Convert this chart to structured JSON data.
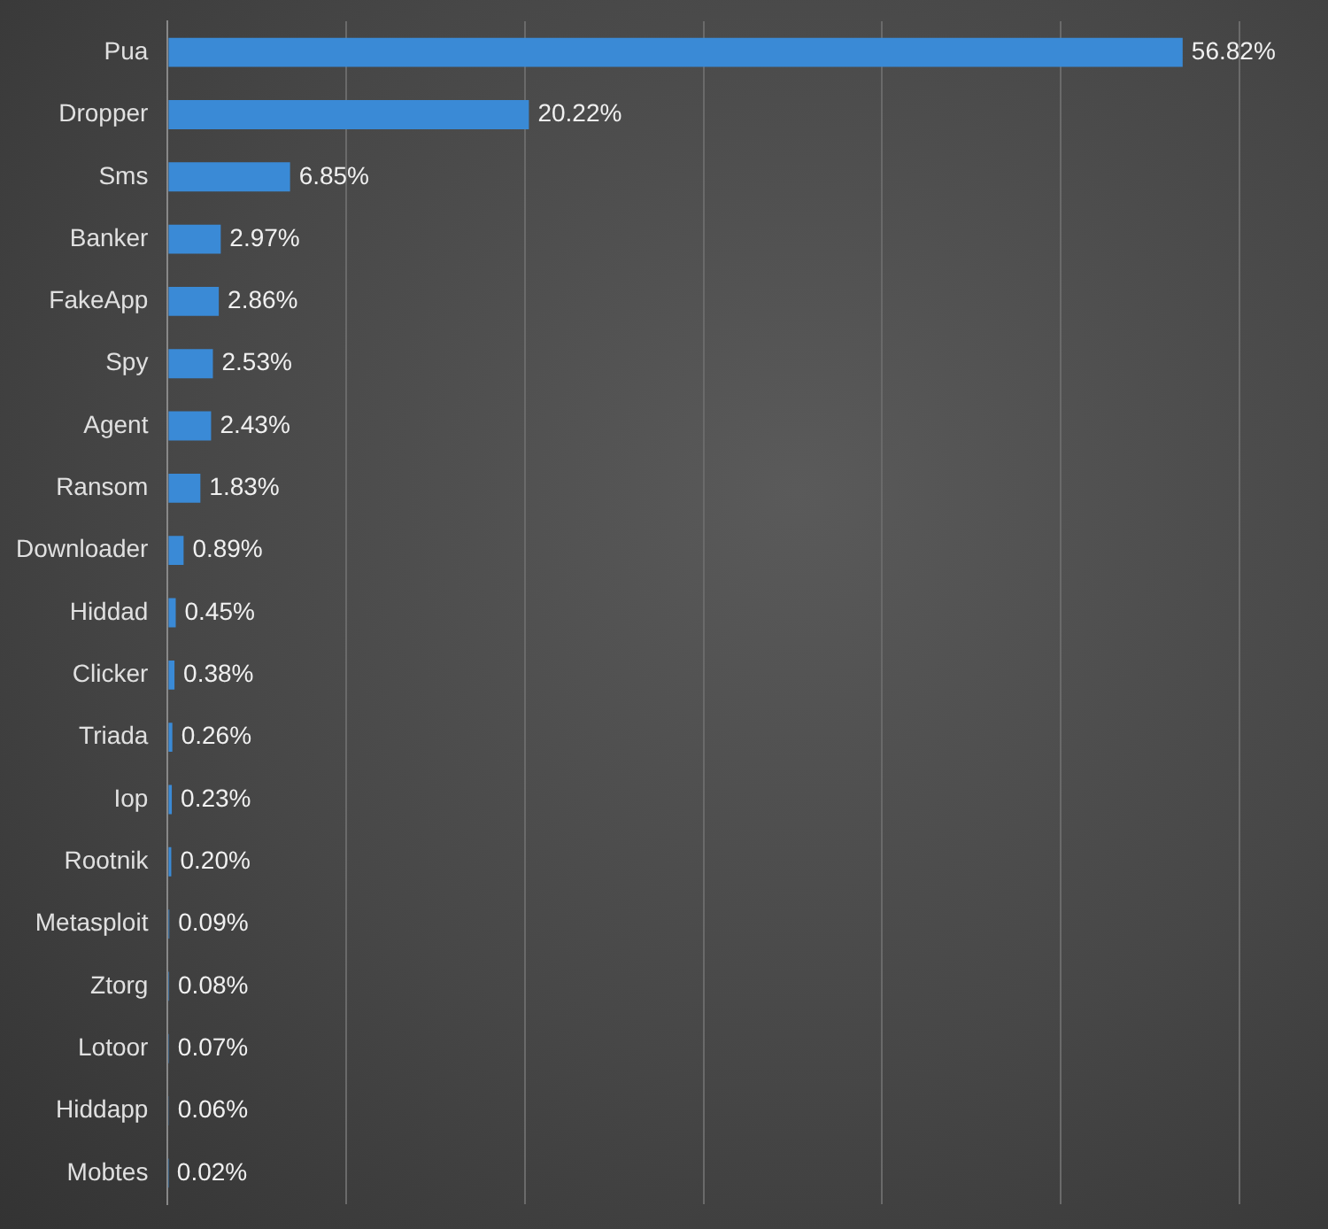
{
  "chart_data": {
    "type": "bar",
    "orientation": "horizontal",
    "categories": [
      "Pua",
      "Dropper",
      "Sms",
      "Banker",
      "FakeApp",
      "Spy",
      "Agent",
      "Ransom",
      "Downloader",
      "Hiddad",
      "Clicker",
      "Triada",
      "Iop",
      "Rootnik",
      "Metasploit",
      "Ztorg",
      "Lotoor",
      "Hiddapp",
      "Mobtes"
    ],
    "values": [
      56.82,
      20.22,
      6.85,
      2.97,
      2.86,
      2.53,
      2.43,
      1.83,
      0.89,
      0.45,
      0.38,
      0.26,
      0.23,
      0.2,
      0.09,
      0.08,
      0.07,
      0.06,
      0.02
    ],
    "value_labels": [
      "56.82%",
      "20.22%",
      "6.85%",
      "2.97%",
      "2.86%",
      "2.53%",
      "2.43%",
      "1.83%",
      "0.89%",
      "0.45%",
      "0.38%",
      "0.26%",
      "0.23%",
      "0.20%",
      "0.09%",
      "0.08%",
      "0.07%",
      "0.06%",
      "0.02%"
    ],
    "color": "#3a8ad6",
    "xlim": [
      0,
      60
    ],
    "xticks": [
      {
        "value": 0,
        "label": null
      },
      {
        "value": 10,
        "label": null
      },
      {
        "value": 20,
        "label": null
      },
      {
        "value": 30,
        "label": null
      },
      {
        "value": 40,
        "label": null
      },
      {
        "value": 50,
        "label": null
      },
      {
        "value": 60,
        "label": null
      }
    ],
    "tick_labels": "y",
    "grid": "x",
    "legend": false
  }
}
